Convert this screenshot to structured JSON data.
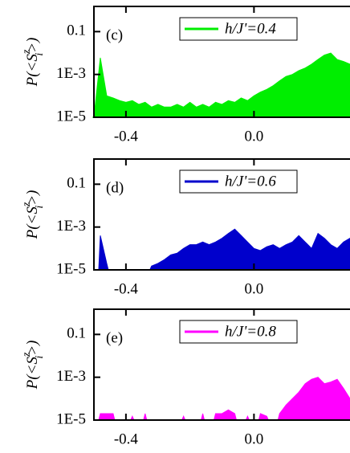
{
  "chart_data": [
    {
      "type": "area",
      "panel_label": "(c)",
      "y_label": [
        "P(<S",
        "z",
        "i",
        ">)"
      ],
      "x": [
        -0.5,
        -0.48,
        -0.46,
        -0.44,
        -0.42,
        -0.4,
        -0.38,
        -0.36,
        -0.34,
        -0.32,
        -0.3,
        -0.28,
        -0.26,
        -0.24,
        -0.22,
        -0.2,
        -0.18,
        -0.16,
        -0.14,
        -0.12,
        -0.1,
        -0.08,
        -0.06,
        -0.04,
        -0.02,
        0,
        0.02,
        0.04,
        0.06,
        0.08,
        0.1,
        0.12,
        0.14,
        0.16,
        0.18,
        0.2,
        0.22,
        0.24,
        0.26,
        0.28,
        0.3
      ],
      "series": [
        {
          "name": "h/J'=0.4",
          "color": "#00ee00",
          "values": [
            1e-05,
            0.006,
            0.0001,
            8e-05,
            6e-05,
            5e-05,
            6e-05,
            4e-05,
            5e-05,
            3e-05,
            4e-05,
            3e-05,
            3e-05,
            4e-05,
            3e-05,
            5e-05,
            3e-05,
            4e-05,
            3e-05,
            5e-05,
            4e-05,
            6e-05,
            5e-05,
            8e-05,
            6e-05,
            0.0001,
            0.00015,
            0.0002,
            0.0003,
            0.0005,
            0.0008,
            0.001,
            0.0015,
            0.002,
            0.003,
            0.005,
            0.008,
            0.01,
            0.005,
            0.004,
            0.003
          ]
        }
      ],
      "xlim": [
        -0.5,
        0.3
      ],
      "ylim": [
        1e-05,
        1.5
      ],
      "log_y": true,
      "xticks": [
        -0.4,
        {
          "value": 0,
          "label": "0.0"
        }
      ],
      "yticks": [
        {
          "value": 1e-05,
          "label": "1E-5"
        },
        {
          "value": 0.001,
          "label": "1E-3"
        },
        0.1
      ]
    },
    {
      "type": "area",
      "panel_label": "(d)",
      "y_label": [
        "P(<S",
        "z",
        "i",
        ">)"
      ],
      "x": [
        -0.5,
        -0.48,
        -0.46,
        -0.44,
        -0.42,
        -0.4,
        -0.38,
        -0.36,
        -0.34,
        -0.32,
        -0.3,
        -0.28,
        -0.26,
        -0.24,
        -0.22,
        -0.2,
        -0.18,
        -0.16,
        -0.14,
        -0.12,
        -0.1,
        -0.08,
        -0.06,
        -0.04,
        -0.02,
        0,
        0.02,
        0.04,
        0.06,
        0.08,
        0.1,
        0.12,
        0.14,
        0.16,
        0.18,
        0.2,
        0.22,
        0.24,
        0.26,
        0.28,
        0.3
      ],
      "series": [
        {
          "name": "h/J'=0.6",
          "color": "#0000cc",
          "values": [
            null,
            0.0004,
            2e-05,
            null,
            null,
            null,
            null,
            null,
            null,
            1.5e-05,
            2e-05,
            3e-05,
            5e-05,
            6e-05,
            0.0001,
            0.00015,
            0.00015,
            0.0002,
            0.00015,
            0.0002,
            0.0003,
            0.0005,
            0.0008,
            0.0004,
            0.0002,
            0.0001,
            8e-05,
            0.00012,
            0.00015,
            0.0001,
            0.00015,
            0.0002,
            0.0004,
            0.0002,
            0.0001,
            0.0005,
            0.0003,
            0.00015,
            0.0001,
            0.0002,
            0.0003
          ]
        }
      ],
      "xlim": [
        -0.5,
        0.3
      ],
      "ylim": [
        1e-05,
        1.5
      ],
      "log_y": true,
      "xticks": [
        -0.4,
        {
          "value": 0,
          "label": "0.0"
        }
      ],
      "yticks": [
        {
          "value": 1e-05,
          "label": "1E-5"
        },
        {
          "value": 0.001,
          "label": "1E-3"
        },
        0.1
      ]
    },
    {
      "type": "area",
      "panel_label": "(e)",
      "y_label": [
        "P(<S",
        "z",
        "i",
        ">)"
      ],
      "x": [
        -0.5,
        -0.48,
        -0.46,
        -0.44,
        -0.42,
        -0.4,
        -0.38,
        -0.36,
        -0.34,
        -0.32,
        -0.3,
        -0.28,
        -0.26,
        -0.24,
        -0.22,
        -0.2,
        -0.18,
        -0.16,
        -0.14,
        -0.12,
        -0.1,
        -0.08,
        -0.06,
        -0.04,
        -0.02,
        0,
        0.02,
        0.04,
        0.06,
        0.08,
        0.1,
        0.12,
        0.14,
        0.16,
        0.18,
        0.2,
        0.22,
        0.24,
        0.26,
        0.28,
        0.3
      ],
      "series": [
        {
          "name": "h/J'=0.8",
          "color": "#ff00ff",
          "values": [
            null,
            2e-05,
            2e-05,
            2e-05,
            null,
            null,
            1.5e-05,
            null,
            2e-05,
            null,
            null,
            null,
            null,
            null,
            1.5e-05,
            null,
            null,
            2e-05,
            null,
            2e-05,
            2e-05,
            3e-05,
            2e-05,
            null,
            1.5e-05,
            null,
            2e-05,
            1.5e-05,
            null,
            2e-05,
            5e-05,
            0.0001,
            0.0002,
            0.0005,
            0.0008,
            0.001,
            0.0005,
            0.0006,
            0.0008,
            0.0003,
            0.0001
          ]
        }
      ],
      "xlim": [
        -0.5,
        0.3
      ],
      "ylim": [
        1e-05,
        1.5
      ],
      "log_y": true,
      "xticks": [
        -0.4,
        {
          "value": 0,
          "label": "0.0"
        }
      ],
      "yticks": [
        {
          "value": 1e-05,
          "label": "1E-5"
        },
        {
          "value": 0.001,
          "label": "1E-3"
        },
        0.1
      ]
    }
  ]
}
